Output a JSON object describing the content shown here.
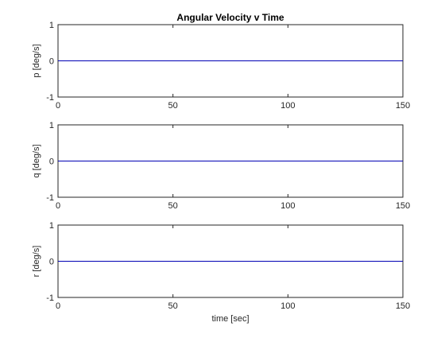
{
  "figure": {
    "title": "Angular Velocity v Time",
    "xlabel": "time [sec]"
  },
  "colors": {
    "line": "#0000b4",
    "axis": "#262626",
    "background": "#ffffff"
  },
  "chart_data": [
    {
      "type": "line",
      "title": "Angular Velocity v Time",
      "xlabel": "",
      "ylabel": "p [deg/s]",
      "xlim": [
        0,
        150
      ],
      "ylim": [
        -1,
        1
      ],
      "xticks": [
        0,
        50,
        100,
        150
      ],
      "yticks": [
        -1,
        0,
        1
      ],
      "grid": false,
      "series": [
        {
          "x": [
            0,
            150
          ],
          "y": [
            0,
            0
          ]
        }
      ]
    },
    {
      "type": "line",
      "title": "",
      "xlabel": "",
      "ylabel": "q [deg/s]",
      "xlim": [
        0,
        150
      ],
      "ylim": [
        -1,
        1
      ],
      "xticks": [
        0,
        50,
        100,
        150
      ],
      "yticks": [
        -1,
        0,
        1
      ],
      "grid": false,
      "series": [
        {
          "x": [
            0,
            150
          ],
          "y": [
            0,
            0
          ]
        }
      ]
    },
    {
      "type": "line",
      "title": "",
      "xlabel": "time [sec]",
      "ylabel": "r [deg/s]",
      "xlim": [
        0,
        150
      ],
      "ylim": [
        -1,
        1
      ],
      "xticks": [
        0,
        50,
        100,
        150
      ],
      "yticks": [
        -1,
        0,
        1
      ],
      "grid": false,
      "series": [
        {
          "x": [
            0,
            150
          ],
          "y": [
            0,
            0
          ]
        }
      ]
    }
  ]
}
